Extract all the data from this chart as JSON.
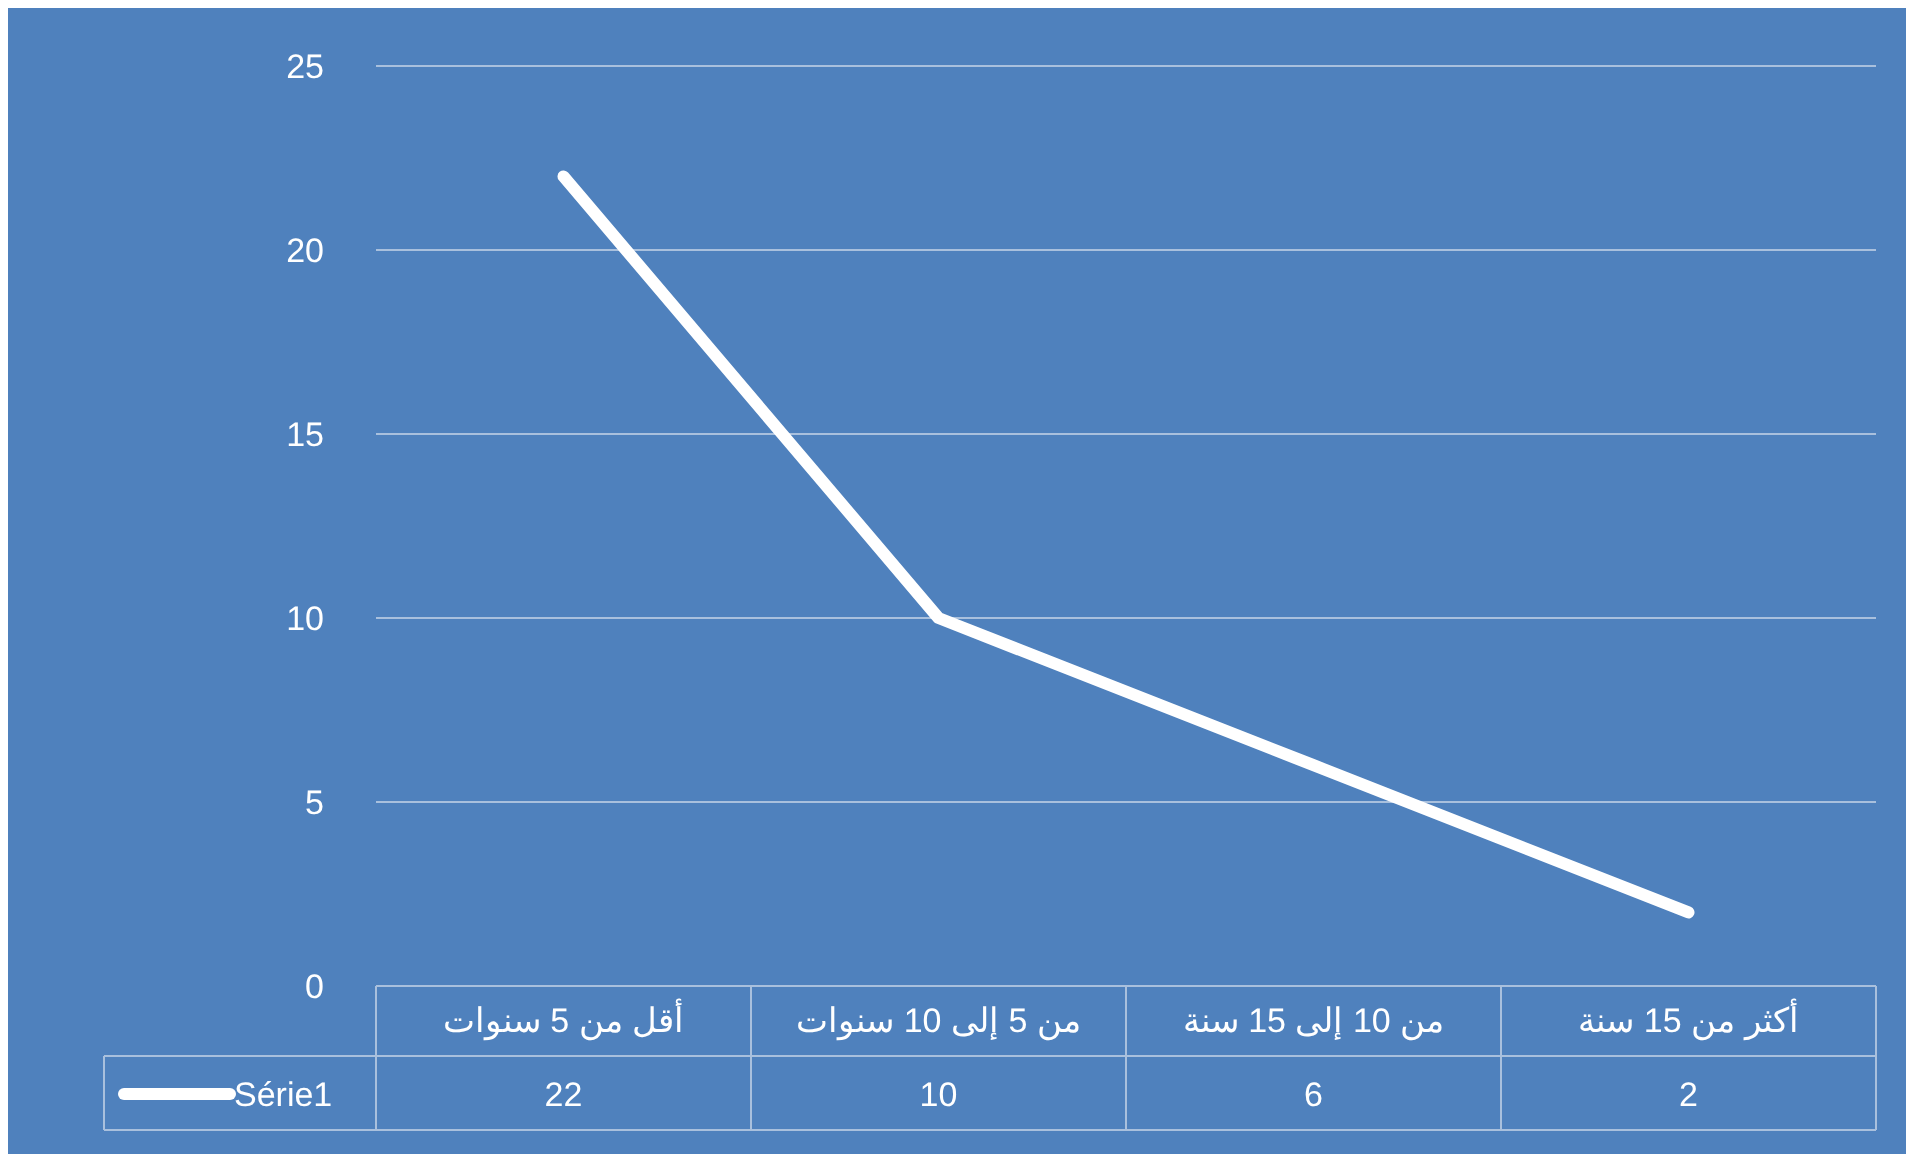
{
  "chart_data": {
    "type": "line",
    "categories": [
      "أقل من 5 سنوات",
      "من 5 إلى 10 سنوات",
      "من 10 إلى 15 سنة",
      "أكثر من 15 سنة"
    ],
    "series": [
      {
        "name": "Série1",
        "color": "#ffffff",
        "values": [
          22,
          10,
          6,
          2
        ]
      }
    ],
    "ylim": [
      0,
      25
    ],
    "yticks": [
      0,
      5,
      10,
      15,
      20,
      25
    ],
    "grid": "y",
    "data_labels": true,
    "legend": "bottom",
    "marker": "none",
    "line_style": "solid"
  }
}
